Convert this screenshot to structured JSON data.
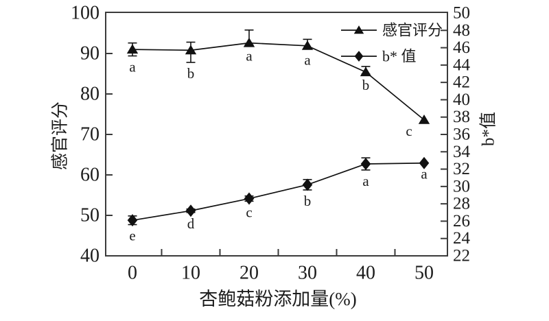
{
  "chart_data": {
    "type": "line",
    "title": "",
    "xlabel": "杏鲍菇粉添加量(%)",
    "x": [
      0,
      10,
      20,
      30,
      40,
      50
    ],
    "x_ticks": [
      0,
      10,
      20,
      30,
      40,
      50
    ],
    "x_minor_ticks": [
      5,
      15,
      25,
      35,
      45
    ],
    "xlim": [
      0,
      50
    ],
    "left_axis": {
      "label": "感官评分",
      "min": 40,
      "max": 100,
      "ticks": [
        40,
        50,
        60,
        70,
        80,
        90,
        100
      ]
    },
    "right_axis": {
      "label": "b*值",
      "min": 22,
      "max": 50,
      "ticks": [
        22,
        24,
        26,
        28,
        30,
        32,
        34,
        36,
        38,
        40,
        42,
        44,
        46,
        48,
        50
      ]
    },
    "series": [
      {
        "name": "感官评分",
        "axis": "left",
        "marker": "triangle",
        "values": [
          91.0,
          90.8,
          92.6,
          91.9,
          85.4,
          73.6
        ],
        "err_up": [
          1.6,
          2.0,
          3.2,
          1.6,
          1.4,
          0
        ],
        "err_down": [
          1.6,
          3.0,
          0.5,
          0.8,
          0.5,
          0
        ],
        "point_labels": [
          "a",
          "b",
          "a",
          "a",
          "b",
          "c"
        ]
      },
      {
        "name": "b* 值",
        "axis": "right",
        "marker": "diamond",
        "values": [
          26.1,
          27.2,
          28.6,
          30.2,
          32.6,
          32.7
        ],
        "err_up": [
          0.5,
          0.2,
          0.3,
          0.6,
          0.7,
          0
        ],
        "err_down": [
          0.5,
          0.2,
          0.3,
          0.6,
          0.7,
          0
        ],
        "point_labels": [
          "e",
          "d",
          "c",
          "b",
          "a",
          "a"
        ]
      }
    ],
    "legend": {
      "position": "inside-top-right",
      "items": [
        "感官评分",
        "b* 值"
      ]
    },
    "grid": false,
    "colors": {
      "data": "#111111",
      "frame": "#3a3a3a",
      "text": "#1c1c1c",
      "background": "#ffffff"
    }
  }
}
